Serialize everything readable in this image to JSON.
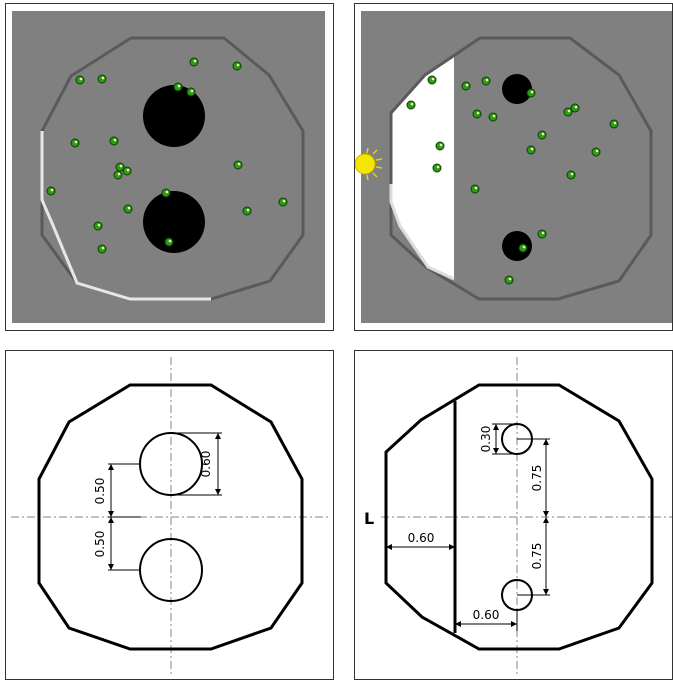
{
  "colors": {
    "sim_background": "#808080",
    "sim_wall_dark": "#5a5a5a",
    "sim_wall_light": "#e8e8e8",
    "hole": "#000000",
    "particle": "#2e9a1a",
    "light_zone": "#ffffff",
    "lamp": "#f5e600",
    "diagram_line": "#000000",
    "centerline": "#888888"
  },
  "icons": {
    "light_source": "sun-lamp-icon"
  },
  "diagram_left": {
    "dims": {
      "hole_diameter": "0.60",
      "upper_offset": "0.50",
      "lower_offset": "0.50"
    }
  },
  "diagram_right": {
    "dims": {
      "hole_diameter": "0.30",
      "upper_offset": "0.75",
      "lower_offset": "0.75",
      "zone_width": "0.60",
      "hole_x_offset": "0.60"
    },
    "light_label": "L"
  }
}
